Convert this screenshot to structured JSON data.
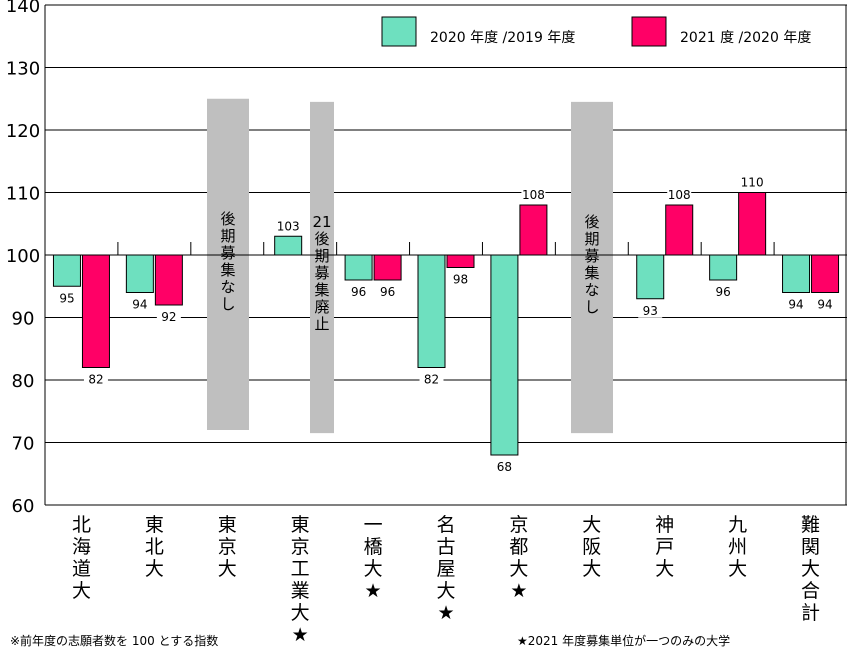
{
  "chart_data": {
    "type": "bar",
    "ylim": [
      60,
      140
    ],
    "yticks": [
      60,
      70,
      80,
      90,
      100,
      110,
      120,
      130,
      140
    ],
    "baseline": 100,
    "categories": [
      "北\n海\n道\n大",
      "東\n北\n大",
      "東\n京\n大",
      "東\n京\n工\n業\n大\n★",
      "一\n橋\n大\n★",
      "名\n古\n屋\n大\n★",
      "京\n都\n大\n★",
      "大\n阪\n大",
      "神\n戸\n大",
      "九\n州\n大",
      "難\n関\n大\n合\n計"
    ],
    "series": [
      {
        "name": "2020 年度 /2019 年度",
        "color": "#6ee0bf",
        "values": [
          95,
          94,
          null,
          103,
          96,
          82,
          68,
          null,
          93,
          96,
          94
        ]
      },
      {
        "name": "2021 度 /2020 年度",
        "color": "#ff0066",
        "values": [
          82,
          92,
          null,
          null,
          96,
          98,
          108,
          null,
          108,
          110,
          94
        ]
      }
    ],
    "no_data_blocks": [
      {
        "category_index": 2,
        "text": "後\n期\n募\n集\nな\nし"
      },
      {
        "category_index": 3,
        "text": "21\n後\n期\n募\n集\n廃\n止"
      },
      {
        "category_index": 7,
        "text": "後\n期\n募\n集\nな\nし"
      }
    ],
    "grid": true,
    "legend_position": "top-right"
  },
  "colors": {
    "gray_block": "#bfbfbf",
    "bar_stroke": "#000000"
  },
  "footnotes": {
    "left": "※前年度の志願者数を 100 とする指数",
    "right": "★2021 年度募集単位が一つのみの大学"
  }
}
